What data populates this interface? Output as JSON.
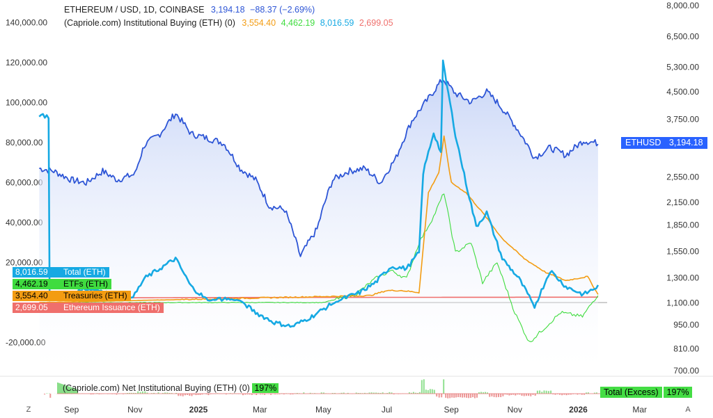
{
  "header": {
    "symbol": "ETHEREUM / USD, 1D, COINBASE",
    "price": "3,194.18",
    "change": "−88.37 (−2.69%)",
    "indicator": "(Capriole.com) Institutional Buying (ETH) (0)",
    "values": [
      "3,554.40",
      "4,462.19",
      "8,016.59",
      "2,699.05"
    ]
  },
  "legend": [
    {
      "value": "8,016.59",
      "name": "Total (ETH)",
      "color": "#16a9e3"
    },
    {
      "value": "4,462.19",
      "name": "ETFs (ETH)",
      "color": "#3fdc3f"
    },
    {
      "value": "3,554.40",
      "name": "Treasuries (ETH)",
      "color": "#f39c12"
    },
    {
      "value": "2,699.05",
      "name": "Ethereum Issuance (ETH)",
      "color": "#ef6f6c"
    }
  ],
  "price_label": {
    "name": "ETHUSD",
    "value": "3,194.18"
  },
  "net": {
    "label": "(Capriole.com) Net Institutional Buying (ETH) (0)",
    "pct": "197%"
  },
  "excess": {
    "label": "Total (Excess)",
    "pct": "197%"
  },
  "corners": {
    "left": "Z",
    "right": "A"
  },
  "chart_data": {
    "type": "line",
    "left_axis_ticks": [
      "140,000.00",
      "120,000.00",
      "100,000.00",
      "80,000.00",
      "60,000.00",
      "40,000.00",
      "20,000.00",
      "-20,000.00"
    ],
    "right_axis_ticks": [
      "8,000.00",
      "6,500.00",
      "5,300.00",
      "4,500.00",
      "3,750.00",
      "2,550.00",
      "2,150.00",
      "1,850.00",
      "1,550.00",
      "1,300.00",
      "1,100.00",
      "950.00",
      "810.00",
      "700.00"
    ],
    "right_axis_scale": "log",
    "x_ticks": [
      "Sep",
      "Nov",
      "2025",
      "Mar",
      "May",
      "Jul",
      "Sep",
      "Nov",
      "2026",
      "Mar"
    ],
    "x_bold": [
      "2025",
      "2026"
    ],
    "colors": {
      "eth": "#2d55d6",
      "total": "#16a9e3",
      "etf": "#3fdc3f",
      "treasury": "#f39c12",
      "issuance": "#ef6f6c",
      "zero": "#9e9e9e"
    },
    "eth_usd": {
      "x": [
        "2024-08-01",
        "2024-08-15",
        "2024-09-01",
        "2024-09-15",
        "2024-10-01",
        "2024-10-15",
        "2024-11-01",
        "2024-11-10",
        "2024-11-25",
        "2024-12-10",
        "2024-12-25",
        "2025-01-10",
        "2025-01-25",
        "2025-02-10",
        "2025-02-25",
        "2025-03-10",
        "2025-03-25",
        "2025-04-09",
        "2025-04-25",
        "2025-05-10",
        "2025-05-25",
        "2025-06-10",
        "2025-06-25",
        "2025-07-10",
        "2025-07-25",
        "2025-08-10",
        "2025-08-24",
        "2025-09-05",
        "2025-09-20",
        "2025-10-05",
        "2025-10-15",
        "2025-11-01",
        "2025-11-20",
        "2025-12-05",
        "2025-12-20",
        "2026-01-06",
        "2026-01-20"
      ],
      "values": [
        2700,
        2650,
        2500,
        2450,
        2650,
        2500,
        2600,
        3150,
        3400,
        3900,
        3400,
        3300,
        3200,
        2700,
        2500,
        2100,
        2050,
        1500,
        1800,
        2500,
        2650,
        2700,
        2450,
        2900,
        3700,
        4300,
        4900,
        4450,
        4200,
        4500,
        4200,
        3600,
        2900,
        3100,
        2950,
        3250,
        3194
      ]
    },
    "series": [
      {
        "name": "Total (ETH)",
        "x": [
          "2024-08-01",
          "2024-08-10",
          "2024-08-11",
          "2024-09-15",
          "2024-10-01",
          "2024-10-20",
          "2024-11-01",
          "2024-11-10",
          "2024-11-25",
          "2024-12-10",
          "2024-12-25",
          "2025-01-10",
          "2025-01-25",
          "2025-02-10",
          "2025-02-25",
          "2025-03-15",
          "2025-04-01",
          "2025-04-20",
          "2025-05-05",
          "2025-05-20",
          "2025-06-05",
          "2025-06-20",
          "2025-07-05",
          "2025-07-20",
          "2025-08-01",
          "2025-08-05",
          "2025-08-15",
          "2025-08-22",
          "2025-08-24",
          "2025-09-05",
          "2025-09-15",
          "2025-09-25",
          "2025-10-05",
          "2025-10-20",
          "2025-11-05",
          "2025-11-20",
          "2025-12-05",
          "2025-12-20",
          "2026-01-06",
          "2026-01-20"
        ],
        "values": [
          94000,
          93000,
          1000,
          7000,
          6000,
          2000,
          4000,
          12000,
          17000,
          22000,
          8000,
          1000,
          2000,
          1000,
          -5000,
          -10000,
          -12000,
          -7000,
          -2000,
          2000,
          5000,
          10000,
          18000,
          17000,
          25000,
          65000,
          85000,
          75000,
          120000,
          84000,
          60000,
          38000,
          45000,
          22000,
          12000,
          -2000,
          16000,
          8000,
          4000,
          8000
        ]
      },
      {
        "name": "ETFs (ETH)",
        "x": [
          "2024-08-01",
          "2025-05-01",
          "2025-06-01",
          "2025-06-20",
          "2025-07-05",
          "2025-07-20",
          "2025-08-01",
          "2025-08-15",
          "2025-08-25",
          "2025-09-05",
          "2025-09-20",
          "2025-10-01",
          "2025-10-15",
          "2025-11-01",
          "2025-11-15",
          "2025-12-01",
          "2025-12-15",
          "2026-01-05",
          "2026-01-20"
        ],
        "values": [
          0,
          0,
          4000,
          12000,
          16000,
          12000,
          30000,
          43000,
          55000,
          25000,
          30000,
          10000,
          20000,
          -5000,
          -20000,
          -12000,
          -5000,
          -7000,
          4000
        ]
      },
      {
        "name": "Treasuries (ETH)",
        "x": [
          "2024-08-01",
          "2025-05-01",
          "2025-06-15",
          "2025-07-01",
          "2025-07-15",
          "2025-08-01",
          "2025-08-10",
          "2025-08-20",
          "2025-08-25",
          "2025-09-01",
          "2025-09-15",
          "2025-10-01",
          "2025-10-20",
          "2025-11-10",
          "2025-12-01",
          "2025-12-20",
          "2026-01-10",
          "2026-01-20"
        ],
        "values": [
          0,
          3000,
          3500,
          6000,
          6000,
          5000,
          55000,
          65000,
          83000,
          60000,
          55000,
          45000,
          32000,
          22000,
          15000,
          11000,
          13000,
          4000
        ]
      },
      {
        "name": "Ethereum Issuance (ETH)",
        "x": [
          "2024-08-01",
          "2025-01-01",
          "2025-07-01",
          "2026-01-20"
        ],
        "values": [
          2200,
          2500,
          2600,
          2700
        ]
      }
    ],
    "net_bars": "Net Institutional Buying (ETH)"
  }
}
